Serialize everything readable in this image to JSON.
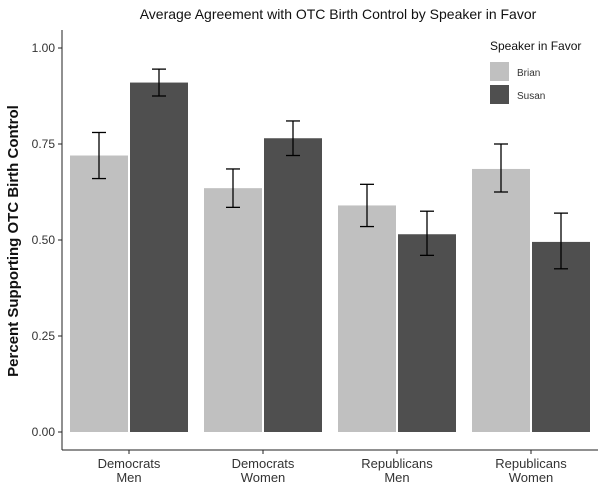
{
  "chart_data": {
    "type": "bar",
    "title": "Average Agreement with OTC Birth Control by Speaker in Favor",
    "ylabel": "Percent Supporting OTC Birth Control",
    "xlabel": "",
    "categories": [
      [
        "Democrats",
        "Men"
      ],
      [
        "Democrats",
        "Women"
      ],
      [
        "Republicans",
        "Men"
      ],
      [
        "Republicans",
        "Women"
      ]
    ],
    "series": [
      {
        "name": "Brian",
        "color": "#c0c0c0",
        "values": [
          0.72,
          0.635,
          0.59,
          0.685
        ],
        "error_low": [
          0.66,
          0.585,
          0.535,
          0.625
        ],
        "error_high": [
          0.78,
          0.685,
          0.645,
          0.75
        ]
      },
      {
        "name": "Susan",
        "color": "#4f4f4f",
        "values": [
          0.91,
          0.765,
          0.515,
          0.495
        ],
        "error_low": [
          0.875,
          0.72,
          0.46,
          0.425
        ],
        "error_high": [
          0.945,
          0.81,
          0.575,
          0.57
        ]
      }
    ],
    "ylim": [
      0,
      1.0
    ],
    "yticks": [
      "0.00",
      "0.25",
      "0.50",
      "0.75",
      "1.00"
    ],
    "legend": {
      "title": "Speaker in Favor",
      "position": "top-right"
    },
    "grid": false
  }
}
